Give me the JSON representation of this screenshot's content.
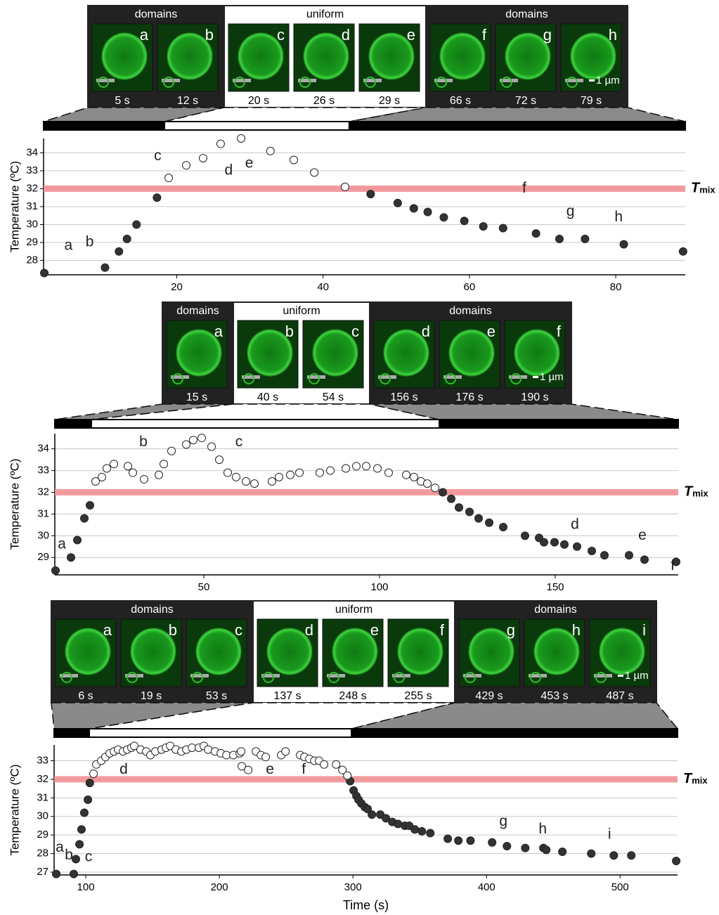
{
  "strips": [
    {
      "groups": [
        {
          "label": "domains",
          "background": "#222222",
          "text_color": "#ffffff",
          "frames": [
            {
              "letter": "a",
              "time": "5 s"
            },
            {
              "letter": "b",
              "time": "12 s"
            }
          ]
        },
        {
          "label": "uniform",
          "background": "#ffffff",
          "text_color": "#000000",
          "frames": [
            {
              "letter": "c",
              "time": "20 s"
            },
            {
              "letter": "d",
              "time": "26 s"
            },
            {
              "letter": "e",
              "time": "29 s"
            }
          ]
        },
        {
          "label": "domains",
          "background": "#222222",
          "text_color": "#ffffff",
          "frames": [
            {
              "letter": "f",
              "time": "66 s"
            },
            {
              "letter": "g",
              "time": "72 s"
            },
            {
              "letter": "h",
              "time": "79 s"
            }
          ]
        }
      ],
      "scale_label": "1 µm"
    },
    {
      "groups": [
        {
          "label": "domains",
          "background": "#222222",
          "text_color": "#ffffff",
          "frames": [
            {
              "letter": "a",
              "time": "15 s"
            }
          ]
        },
        {
          "label": "uniform",
          "background": "#ffffff",
          "text_color": "#000000",
          "frames": [
            {
              "letter": "b",
              "time": "40 s"
            },
            {
              "letter": "c",
              "time": "54 s"
            }
          ]
        },
        {
          "label": "domains",
          "background": "#222222",
          "text_color": "#ffffff",
          "frames": [
            {
              "letter": "d",
              "time": "156 s"
            },
            {
              "letter": "e",
              "time": "176 s"
            },
            {
              "letter": "f",
              "time": "190 s"
            }
          ]
        }
      ],
      "scale_label": "1 µm"
    },
    {
      "groups": [
        {
          "label": "domains",
          "background": "#222222",
          "text_color": "#ffffff",
          "frames": [
            {
              "letter": "a",
              "time": "6 s"
            },
            {
              "letter": "b",
              "time": "19 s"
            },
            {
              "letter": "c",
              "time": "53 s"
            }
          ]
        },
        {
          "label": "uniform",
          "background": "#ffffff",
          "text_color": "#000000",
          "frames": [
            {
              "letter": "d",
              "time": "137 s"
            },
            {
              "letter": "e",
              "time": "248 s"
            },
            {
              "letter": "f",
              "time": "255 s"
            }
          ]
        },
        {
          "label": "domains",
          "background": "#222222",
          "text_color": "#ffffff",
          "frames": [
            {
              "letter": "g",
              "time": "429 s"
            },
            {
              "letter": "h",
              "time": "453 s"
            },
            {
              "letter": "i",
              "time": "487 s"
            }
          ]
        }
      ],
      "scale_label": "1 µm"
    }
  ],
  "chart_data": [
    {
      "type": "scatter",
      "ylabel": "Temperature (ºC)",
      "xlim": [
        1.8,
        89.5
      ],
      "ylim": [
        27.2,
        34.8
      ],
      "xticks": [
        20,
        40,
        60,
        80
      ],
      "yticks": [
        28,
        29,
        30,
        31,
        32,
        33,
        34
      ],
      "grid": true,
      "reference": {
        "value": 32,
        "label": "T",
        "label_sub": "mix",
        "color": "#f28b8f"
      },
      "series": [
        {
          "color": "#333333",
          "x": [
            1.9,
            10.2,
            12.1,
            13.2,
            14.5,
            17.3,
            46.5,
            50.2,
            52.4,
            54.3,
            56.5,
            59.3,
            61.9,
            64.6,
            69.1,
            72.3,
            75.8,
            81.1,
            89.2
          ],
          "values": [
            27.3,
            27.6,
            28.5,
            29.2,
            30.0,
            31.5,
            31.7,
            31.2,
            30.9,
            30.7,
            30.4,
            30.2,
            29.9,
            29.8,
            29.5,
            29.2,
            29.2,
            28.9,
            28.5
          ]
        },
        {
          "color": "#ffffff",
          "x": [
            18.9,
            21.3,
            23.6,
            26.0,
            28.8,
            32.8,
            36.0,
            38.8,
            43.0
          ],
          "values": [
            32.6,
            33.3,
            33.7,
            34.5,
            34.8,
            34.1,
            33.6,
            32.9,
            32.1
          ]
        }
      ],
      "annotations": [
        {
          "text": "a",
          "x": 5.2,
          "y": 28.8
        },
        {
          "text": "b",
          "x": 8.1,
          "y": 29.0
        },
        {
          "text": "c",
          "x": 17.4,
          "y": 33.8
        },
        {
          "text": "d",
          "x": 27.1,
          "y": 33.0
        },
        {
          "text": "e",
          "x": 29.9,
          "y": 33.4
        },
        {
          "text": "f",
          "x": 67.5,
          "y": 32.0
        },
        {
          "text": "g",
          "x": 73.8,
          "y": 30.7
        },
        {
          "text": "h",
          "x": 80.4,
          "y": 30.4
        }
      ]
    },
    {
      "type": "scatter",
      "ylabel": "Temperature (ºC)",
      "xlim": [
        7.6,
        185
      ],
      "ylim": [
        28.2,
        34.7
      ],
      "xticks": [
        50,
        100,
        150
      ],
      "yticks": [
        29,
        30,
        31,
        32,
        33,
        34
      ],
      "grid": true,
      "reference": {
        "value": 32,
        "label": "T",
        "label_sub": "mix",
        "color": "#f28b8f"
      },
      "series": [
        {
          "color": "#333333",
          "x": [
            7.8,
            12.2,
            14,
            16,
            17.6,
            118,
            120.4,
            122.6,
            125.6,
            128.2,
            131.2,
            135.2,
            141.4,
            145.4,
            146.8,
            149.8,
            152.6,
            156.2,
            160.4,
            164,
            171,
            175.4,
            184.4
          ],
          "values": [
            28.4,
            29.0,
            29.8,
            30.8,
            31.4,
            32.0,
            31.7,
            31.3,
            31.1,
            30.8,
            30.6,
            30.4,
            30.0,
            29.9,
            29.7,
            29.7,
            29.6,
            29.5,
            29.3,
            29.1,
            29.1,
            28.9,
            28.8
          ]
        },
        {
          "color": "#ffffff",
          "x": [
            19.2,
            21,
            22.4,
            24.4,
            28.4,
            29.8,
            33,
            37.2,
            38.6,
            40.8,
            45,
            47,
            49.4,
            52.2,
            54.4,
            56.8,
            59.2,
            62,
            64.4,
            69.4,
            71.4,
            74.6,
            77.2,
            83,
            86,
            90.4,
            93.4,
            96.2,
            99.4,
            102.6,
            107.6,
            109.8,
            111.8,
            113.6,
            115.8
          ],
          "values": [
            32.5,
            32.7,
            33.1,
            33.3,
            33.2,
            32.9,
            32.6,
            32.8,
            33.3,
            33.9,
            34.2,
            34.4,
            34.5,
            34.1,
            33.5,
            32.9,
            32.7,
            32.5,
            32.4,
            32.5,
            32.7,
            32.8,
            32.9,
            32.9,
            33.0,
            33.1,
            33.2,
            33.2,
            33.1,
            32.9,
            32.8,
            32.7,
            32.5,
            32.4,
            32.2
          ]
        }
      ],
      "annotations": [
        {
          "text": "a",
          "x": 9.6,
          "y": 29.6
        },
        {
          "text": "b",
          "x": 32.8,
          "y": 34.3
        },
        {
          "text": "c",
          "x": 60,
          "y": 34.3
        },
        {
          "text": "d",
          "x": 155.6,
          "y": 30.5
        },
        {
          "text": "e",
          "x": 174.8,
          "y": 30.0
        },
        {
          "text": "f",
          "x": 183.4,
          "y": 28.6
        }
      ]
    },
    {
      "type": "scatter",
      "ylabel": "Temperature (ºC)",
      "xlabel": "Time (s)",
      "xlim": [
        76.3,
        543
      ],
      "ylim": [
        26.85,
        33.85
      ],
      "xticks": [
        100,
        200,
        300,
        400,
        500
      ],
      "yticks": [
        27,
        28,
        29,
        30,
        31,
        32,
        33
      ],
      "grid": true,
      "reference": {
        "value": 32,
        "label": "T",
        "label_sub": "mix",
        "color": "#f28b8f"
      },
      "series": [
        {
          "color": "#333333",
          "x": [
            77.9,
            91,
            92.6,
            95.3,
            96.8,
            98.9,
            101.6,
            103,
            297.9,
            300.5,
            302.6,
            304.2,
            306.3,
            308.9,
            311,
            314.2,
            320.5,
            324.7,
            329.5,
            333.7,
            338.9,
            342.1,
            346.3,
            351.6,
            357.9,
            371,
            378.9,
            388,
            404.2,
            415.3,
            429,
            442.6,
            444.7,
            456.8,
            478.4,
            495.3,
            508.4,
            542
          ],
          "values": [
            26.9,
            26.9,
            27.7,
            28.5,
            29.3,
            30.2,
            30.9,
            31.8,
            31.9,
            31.4,
            31.1,
            30.9,
            30.7,
            30.5,
            30.4,
            30.1,
            30.1,
            29.9,
            29.7,
            29.6,
            29.5,
            29.5,
            29.3,
            29.2,
            29.1,
            28.8,
            28.7,
            28.7,
            28.6,
            28.4,
            28.3,
            28.3,
            28.2,
            28.1,
            28.0,
            27.9,
            27.9,
            27.6
          ]
        },
        {
          "color": "#ffffff",
          "x": [
            105.8,
            107.9,
            111.6,
            114.7,
            117.9,
            121.1,
            124.2,
            127.9,
            131,
            134.2,
            136.3,
            141,
            145.3,
            148.4,
            152.1,
            156.8,
            160,
            163.2,
            167.4,
            171.6,
            175.3,
            179.5,
            184.7,
            188.4,
            191.6,
            196.8,
            201.1,
            205.3,
            210.5,
            215.3,
            216.3,
            216.8,
            221.6,
            227.4,
            231.1,
            234.7,
            246.3,
            249.5,
            260.5,
            263.7,
            267.4,
            271.1,
            274.7,
            278.4,
            287.4,
            292.1,
            295.8
          ],
          "values": [
            32.3,
            32.8,
            33.0,
            33.2,
            33.4,
            33.5,
            33.6,
            33.5,
            33.6,
            33.7,
            33.8,
            33.6,
            33.5,
            33.3,
            33.5,
            33.6,
            33.7,
            33.8,
            33.6,
            33.5,
            33.6,
            33.7,
            33.7,
            33.8,
            33.6,
            33.5,
            33.4,
            33.3,
            33.3,
            33.4,
            33.5,
            32.7,
            32.5,
            33.5,
            33.3,
            33.2,
            33.3,
            33.5,
            33.3,
            33.2,
            33.1,
            33.0,
            33.0,
            32.8,
            32.8,
            32.5,
            32.2
          ]
        }
      ],
      "annotations": [
        {
          "text": "a",
          "x": 80.5,
          "y": 28.3
        },
        {
          "text": "b",
          "x": 87.4,
          "y": 27.9
        },
        {
          "text": "c",
          "x": 102.1,
          "y": 27.8
        },
        {
          "text": "d",
          "x": 128.4,
          "y": 32.5
        },
        {
          "text": "e",
          "x": 237.9,
          "y": 32.5
        },
        {
          "text": "f",
          "x": 263.2,
          "y": 32.5
        },
        {
          "text": "g",
          "x": 412.6,
          "y": 29.7
        },
        {
          "text": "h",
          "x": 442.1,
          "y": 29.3
        },
        {
          "text": "i",
          "x": 492.1,
          "y": 29.0
        }
      ]
    }
  ]
}
